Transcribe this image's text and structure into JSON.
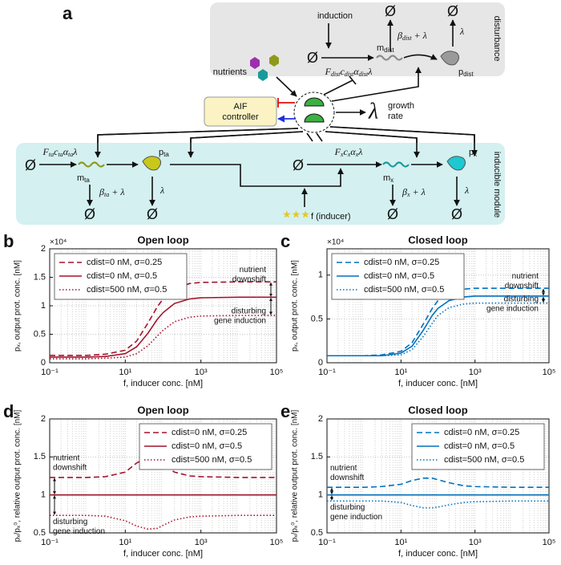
{
  "diagram": {
    "panel": "a",
    "empty_set": "Ø",
    "induction": "induction",
    "m_dist": [
      "m",
      "dist"
    ],
    "beta_dist": [
      "β",
      "dist",
      " + λ"
    ],
    "lambda": "λ",
    "p_dist": [
      "p",
      "dist"
    ],
    "disturbance": "disturbance",
    "nutrients": "nutrients",
    "prod_dist": [
      "F",
      "dist",
      "c",
      "dist",
      "α",
      "dist",
      "λ"
    ],
    "controller": [
      "AIF",
      "controller"
    ],
    "growth_rate": [
      "growth",
      "rate"
    ],
    "prod_ta": [
      "F",
      "ta",
      "c",
      "ta",
      "α",
      "ta",
      "λ"
    ],
    "m_ta": [
      "m",
      "ta"
    ],
    "p_ta": [
      "p",
      "ta"
    ],
    "beta_ta": [
      "β",
      "ta",
      " + λ"
    ],
    "prod_x": [
      "F",
      "x",
      "c",
      "x",
      "α",
      "x",
      "λ"
    ],
    "m_x": [
      "m",
      "x"
    ],
    "p_x": [
      "p",
      "x"
    ],
    "beta_x": [
      "β",
      "x",
      " + λ"
    ],
    "inducer": "f (inducer)",
    "module": "inducible module"
  },
  "chart_data": [
    {
      "type": "line",
      "panel": "b",
      "title": "Open loop",
      "xlabel": "f, inducer conc. [nM]",
      "ylabel": "pₓ, output prot. conc. [nM]",
      "yscale_label": "×10⁴",
      "xscale": "log",
      "xlim": [
        0.1,
        100000
      ],
      "xticks": [
        {
          "value": 0.1,
          "label": "10⁻¹"
        },
        {
          "value": 10,
          "label": "10¹"
        },
        {
          "value": 1000,
          "label": "10³"
        },
        {
          "value": 100000,
          "label": "10⁵"
        }
      ],
      "ylim": [
        0,
        2
      ],
      "yticks": [
        0,
        0.5,
        1,
        1.5,
        2
      ],
      "grid": true,
      "minor_grid": true,
      "legend": "upper left",
      "x": [
        0.1,
        1,
        3,
        10,
        20,
        40,
        70,
        100,
        200,
        500,
        1000,
        10000,
        100000
      ],
      "series": [
        {
          "name": "cdist=0 nM, σ=0.25",
          "color": "#a3142c",
          "dash": "dashed",
          "values": [
            0.13,
            0.13,
            0.15,
            0.22,
            0.38,
            0.7,
            0.98,
            1.12,
            1.3,
            1.39,
            1.41,
            1.42,
            1.42
          ]
        },
        {
          "name": "cdist=0 nM, σ=0.5",
          "color": "#a3142c",
          "dash": "solid",
          "values": [
            0.1,
            0.1,
            0.11,
            0.16,
            0.28,
            0.52,
            0.76,
            0.88,
            1.04,
            1.12,
            1.14,
            1.15,
            1.15
          ]
        },
        {
          "name": "cdist=500 nM, σ=0.5",
          "color": "#a3142c",
          "dash": "dotted",
          "values": [
            0.07,
            0.07,
            0.08,
            0.1,
            0.16,
            0.3,
            0.47,
            0.57,
            0.72,
            0.8,
            0.82,
            0.83,
            0.83
          ]
        }
      ],
      "annotations": [
        {
          "lines": [
            "nutrient",
            "downshift"
          ]
        },
        {
          "lines": [
            "disturbing",
            "gene induction"
          ]
        }
      ]
    },
    {
      "type": "line",
      "panel": "c",
      "title": "Closed loop",
      "xlabel": "f, inducer conc. [nM]",
      "ylabel": "pₓ, output prot. conc. [nM]",
      "yscale_label": "×10⁴",
      "xscale": "log",
      "xlim": [
        0.1,
        100000
      ],
      "xticks": [
        {
          "value": 0.1,
          "label": "10⁻¹"
        },
        {
          "value": 10,
          "label": "10¹"
        },
        {
          "value": 1000,
          "label": "10³"
        },
        {
          "value": 100000,
          "label": "10⁵"
        }
      ],
      "ylim": [
        0,
        1.3
      ],
      "yticks": [
        0,
        0.5,
        1
      ],
      "grid": true,
      "minor_grid": true,
      "legend": "upper left",
      "x": [
        0.1,
        1,
        3,
        10,
        20,
        40,
        70,
        100,
        200,
        500,
        1000,
        10000,
        100000
      ],
      "series": [
        {
          "name": "cdist=0 nM, σ=0.25",
          "color": "#0072bd",
          "dash": "dashed",
          "values": [
            0.08,
            0.08,
            0.09,
            0.13,
            0.23,
            0.44,
            0.62,
            0.71,
            0.8,
            0.84,
            0.85,
            0.85,
            0.85
          ]
        },
        {
          "name": "cdist=0 nM, σ=0.5",
          "color": "#0072bd",
          "dash": "solid",
          "values": [
            0.08,
            0.08,
            0.08,
            0.11,
            0.19,
            0.37,
            0.54,
            0.62,
            0.71,
            0.75,
            0.76,
            0.76,
            0.76
          ]
        },
        {
          "name": "cdist=500 nM, σ=0.5",
          "color": "#0072bd",
          "dash": "dotted",
          "values": [
            0.08,
            0.08,
            0.08,
            0.09,
            0.15,
            0.3,
            0.45,
            0.54,
            0.63,
            0.67,
            0.68,
            0.68,
            0.68
          ]
        }
      ],
      "annotations": [
        {
          "lines": [
            "nutrient",
            "downshift"
          ]
        },
        {
          "lines": [
            "disturbing",
            "gene induction"
          ]
        }
      ]
    },
    {
      "type": "line",
      "panel": "d",
      "title": "Open loop",
      "xlabel": "f, inducer conc. [nM]",
      "ylabel": "pₓ/pₓ⁰, relative output prot. conc. [nM]",
      "xscale": "log",
      "xlim": [
        0.1,
        100000
      ],
      "xticks": [
        {
          "value": 0.1,
          "label": "10⁻¹"
        },
        {
          "value": 10,
          "label": "10¹"
        },
        {
          "value": 1000,
          "label": "10³"
        },
        {
          "value": 100000,
          "label": "10⁵"
        }
      ],
      "ylim": [
        0.5,
        2
      ],
      "yticks": [
        0.5,
        1,
        1.5,
        2
      ],
      "grid": true,
      "minor_grid": true,
      "legend": "upper right",
      "x": [
        0.1,
        1,
        3,
        10,
        20,
        40,
        70,
        100,
        200,
        500,
        1000,
        10000,
        100000
      ],
      "series": [
        {
          "name": "cdist=0 nM, σ=0.25",
          "color": "#a3142c",
          "dash": "dashed",
          "values": [
            1.23,
            1.23,
            1.24,
            1.3,
            1.42,
            1.5,
            1.46,
            1.4,
            1.3,
            1.25,
            1.24,
            1.23,
            1.23
          ]
        },
        {
          "name": "cdist=0 nM, σ=0.5",
          "color": "#a3142c",
          "dash": "solid",
          "values": [
            1,
            1,
            1,
            1,
            1,
            1,
            1,
            1,
            1,
            1,
            1,
            1,
            1
          ]
        },
        {
          "name": "cdist=500 nM, σ=0.5",
          "color": "#a3142c",
          "dash": "dotted",
          "values": [
            0.73,
            0.73,
            0.72,
            0.66,
            0.59,
            0.55,
            0.56,
            0.6,
            0.67,
            0.71,
            0.72,
            0.73,
            0.73
          ]
        }
      ],
      "annotations": [
        {
          "lines": [
            "nutrient",
            "downshift"
          ]
        },
        {
          "lines": [
            "disturbing",
            "gene induction"
          ]
        }
      ]
    },
    {
      "type": "line",
      "panel": "e",
      "title": "Closed loop",
      "xlabel": "f, inducer conc. [nM]",
      "ylabel": "pₓ/pₓ⁰, relative output prot. conc. [nM]",
      "xscale": "log",
      "xlim": [
        0.1,
        100000
      ],
      "xticks": [
        {
          "value": 0.1,
          "label": "10⁻¹"
        },
        {
          "value": 10,
          "label": "10¹"
        },
        {
          "value": 1000,
          "label": "10³"
        },
        {
          "value": 100000,
          "label": "10⁵"
        }
      ],
      "ylim": [
        0.5,
        2
      ],
      "yticks": [
        0.5,
        1,
        1.5,
        2
      ],
      "grid": true,
      "minor_grid": true,
      "legend": "upper right",
      "x": [
        0.1,
        1,
        3,
        10,
        20,
        40,
        70,
        100,
        200,
        500,
        1000,
        10000,
        100000
      ],
      "series": [
        {
          "name": "cdist=0 nM, σ=0.25",
          "color": "#0072bd",
          "dash": "dashed",
          "values": [
            1.1,
            1.1,
            1.11,
            1.14,
            1.19,
            1.22,
            1.22,
            1.2,
            1.16,
            1.12,
            1.11,
            1.1,
            1.1
          ]
        },
        {
          "name": "cdist=0 nM, σ=0.5",
          "color": "#0072bd",
          "dash": "solid",
          "values": [
            1,
            1,
            1,
            1,
            1,
            1,
            1,
            1,
            1,
            1,
            1,
            1,
            1
          ]
        },
        {
          "name": "cdist=500 nM, σ=0.5",
          "color": "#0072bd",
          "dash": "dotted",
          "values": [
            0.92,
            0.92,
            0.92,
            0.9,
            0.86,
            0.83,
            0.83,
            0.84,
            0.87,
            0.9,
            0.91,
            0.92,
            0.92
          ]
        }
      ],
      "annotations": [
        {
          "lines": [
            "nutrient",
            "downshift"
          ]
        },
        {
          "lines": [
            "disturbing",
            "gene induction"
          ]
        }
      ]
    }
  ]
}
